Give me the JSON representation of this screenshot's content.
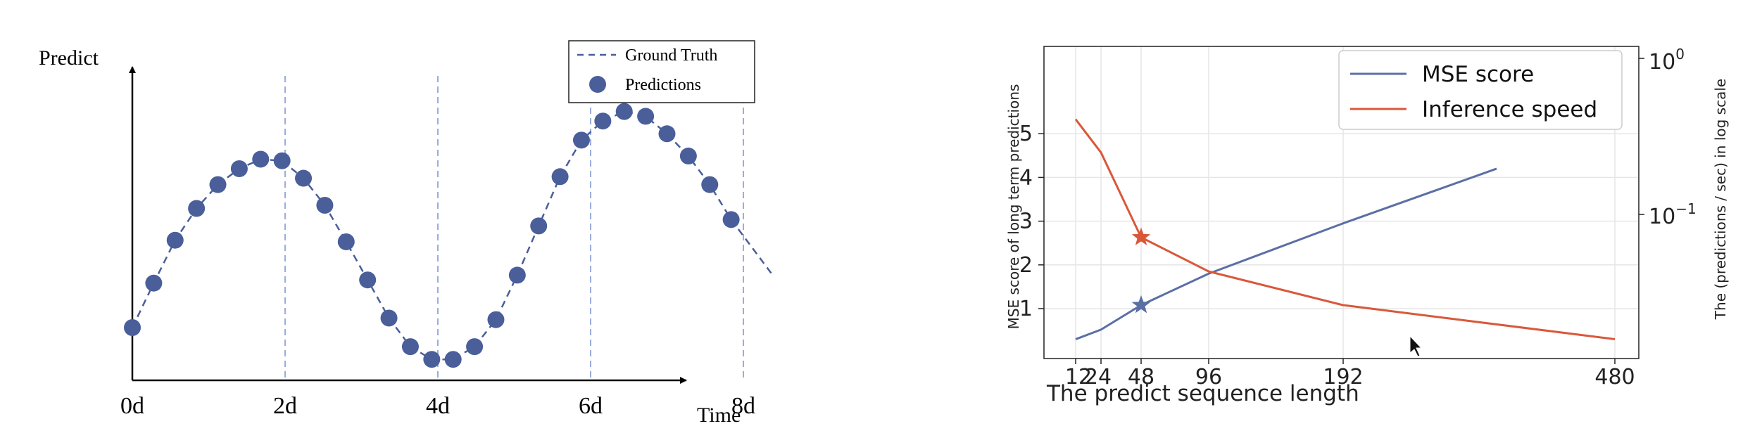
{
  "chart_data": [
    {
      "type": "scatter",
      "ylabel": "Predict",
      "xlabel": "Time",
      "x_ticks": [
        "0d",
        "2d",
        "4d",
        "6d",
        "8d"
      ],
      "x_dashed_lines": [
        2,
        4,
        6,
        8
      ],
      "xlim": [
        0,
        9.3
      ],
      "ylim": [
        -0.95,
        1.5
      ],
      "legend": {
        "position": "top-right",
        "entries": [
          "Ground Truth",
          "Predictions"
        ]
      },
      "series": [
        {
          "name": "Ground Truth",
          "style": "dashed-line",
          "color": "#4a5e9a",
          "x": [
            0,
            0.28,
            0.56,
            0.84,
            1.12,
            1.4,
            1.68,
            1.96,
            2.24,
            2.52,
            2.8,
            3.08,
            3.36,
            3.64,
            3.92,
            4.2,
            4.48,
            4.76,
            5.04,
            5.32,
            5.6,
            5.88,
            6.16,
            6.44,
            6.72,
            7.0,
            7.28,
            7.56,
            7.84,
            8.12,
            8.4
          ],
          "y": [
            0.0,
            0.28,
            0.55,
            0.75,
            0.9,
            1.0,
            1.06,
            1.05,
            0.94,
            0.77,
            0.54,
            0.3,
            0.06,
            -0.12,
            -0.2,
            -0.2,
            -0.12,
            0.05,
            0.33,
            0.64,
            0.95,
            1.18,
            1.3,
            1.36,
            1.33,
            1.22,
            1.08,
            0.9,
            0.68,
            0.5,
            0.32
          ]
        },
        {
          "name": "Predictions",
          "style": "markers",
          "color": "#4a5e9a",
          "x": [
            0,
            0.28,
            0.56,
            0.84,
            1.12,
            1.4,
            1.68,
            1.96,
            2.24,
            2.52,
            2.8,
            3.08,
            3.36,
            3.64,
            3.92,
            4.2,
            4.48,
            4.76,
            5.04,
            5.32,
            5.6,
            5.88,
            6.16,
            6.44,
            6.72,
            7.0,
            7.28,
            7.56,
            7.84
          ],
          "y": [
            0.0,
            0.28,
            0.55,
            0.75,
            0.9,
            1.0,
            1.06,
            1.05,
            0.94,
            0.77,
            0.54,
            0.3,
            0.06,
            -0.12,
            -0.2,
            -0.2,
            -0.12,
            0.05,
            0.33,
            0.64,
            0.95,
            1.18,
            1.3,
            1.36,
            1.33,
            1.22,
            1.08,
            0.9,
            0.68
          ]
        }
      ]
    },
    {
      "type": "line",
      "xlabel": "The predict sequence length",
      "ylabel": "MSE score of long term predictions",
      "ylabel_right": "The (predictions / sec) in log scale",
      "x_ticks": [
        "12",
        "24",
        "48",
        "96",
        "192",
        "480"
      ],
      "x_tick_values": [
        12,
        24,
        48,
        96,
        192,
        480
      ],
      "y_ticks": [
        "1",
        "2",
        "3",
        "4",
        "5"
      ],
      "y_tick_values": [
        1,
        2,
        3,
        4,
        5
      ],
      "y_right_ticks": [
        "10",
        "10"
      ],
      "y_right_tick_exponents": [
        "0",
        "−1"
      ],
      "ylim": [
        0.2,
        5.55
      ],
      "grid": true,
      "legend": {
        "position": "top-right",
        "entries": [
          "MSE score",
          "Inference speed"
        ]
      },
      "series": [
        {
          "name": "MSE score",
          "axis": "left",
          "color": "#5a6fa5",
          "x": [
            12,
            24,
            48,
            96,
            192,
            300
          ],
          "y": [
            0.3,
            0.52,
            1.08,
            1.8,
            2.95,
            4.2
          ]
        },
        {
          "name": "Inference speed",
          "axis": "right",
          "color": "#d9583a",
          "x": [
            12,
            24,
            48,
            96,
            192,
            480
          ],
          "y": [
            5.33,
            4.57,
            2.63,
            1.85,
            1.08,
            0.3
          ]
        }
      ],
      "markers": [
        {
          "series": "MSE score",
          "x": 48,
          "y": 1.08,
          "symbol": "star",
          "color": "#5a6fa5"
        },
        {
          "series": "Inference speed",
          "x": 48,
          "y": 2.63,
          "symbol": "star",
          "color": "#d9583a"
        }
      ]
    }
  ]
}
